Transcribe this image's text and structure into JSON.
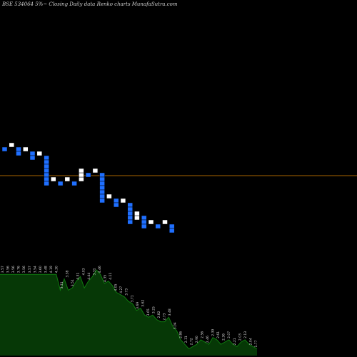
{
  "title": "BSE 534064  5%~ Closing Daily data Renko charts MunafaSutra.com",
  "chart_data": {
    "type": "renko",
    "title": "BSE 534064  5%~ Closing Daily data Renko charts MunafaSutra.com",
    "xlabel": "",
    "ylabel": "",
    "grid": false,
    "legend": "none",
    "colors": {
      "up": "#ffffff",
      "down": "#1f6fff",
      "reference_line": "#a86400",
      "volume_fill": "#063806",
      "volume_edge": "#0f7a0f",
      "label": "#d8d8d8"
    },
    "bricks": [
      {
        "i": 0,
        "dir": "down",
        "row": 0
      },
      {
        "i": 1,
        "dir": "up",
        "row": -1
      },
      {
        "i": 2,
        "dir": "down",
        "row": 0
      },
      {
        "i": 2,
        "dir": "down",
        "row": 1
      },
      {
        "i": 3,
        "dir": "up",
        "row": 0
      },
      {
        "i": 4,
        "dir": "down",
        "row": 1
      },
      {
        "i": 4,
        "dir": "down",
        "row": 2
      },
      {
        "i": 5,
        "dir": "up",
        "row": 1
      },
      {
        "i": 6,
        "dir": "down",
        "row": 2
      },
      {
        "i": 6,
        "dir": "down",
        "row": 3
      },
      {
        "i": 6,
        "dir": "down",
        "row": 4
      },
      {
        "i": 6,
        "dir": "down",
        "row": 5
      },
      {
        "i": 6,
        "dir": "down",
        "row": 6
      },
      {
        "i": 6,
        "dir": "down",
        "row": 7
      },
      {
        "i": 6,
        "dir": "down",
        "row": 8
      },
      {
        "i": 7,
        "dir": "up",
        "row": 7
      },
      {
        "i": 8,
        "dir": "down",
        "row": 8
      },
      {
        "i": 9,
        "dir": "up",
        "row": 7
      },
      {
        "i": 10,
        "dir": "down",
        "row": 8
      },
      {
        "i": 11,
        "dir": "up",
        "row": 7
      },
      {
        "i": 11,
        "dir": "up",
        "row": 6
      },
      {
        "i": 11,
        "dir": "up",
        "row": 5
      },
      {
        "i": 12,
        "dir": "down",
        "row": 6
      },
      {
        "i": 13,
        "dir": "up",
        "row": 5
      },
      {
        "i": 14,
        "dir": "down",
        "row": 6
      },
      {
        "i": 14,
        "dir": "down",
        "row": 7
      },
      {
        "i": 14,
        "dir": "down",
        "row": 8
      },
      {
        "i": 14,
        "dir": "down",
        "row": 9
      },
      {
        "i": 14,
        "dir": "down",
        "row": 10
      },
      {
        "i": 14,
        "dir": "down",
        "row": 11
      },
      {
        "i": 14,
        "dir": "down",
        "row": 12
      },
      {
        "i": 15,
        "dir": "up",
        "row": 11
      },
      {
        "i": 16,
        "dir": "down",
        "row": 12
      },
      {
        "i": 16,
        "dir": "down",
        "row": 13
      },
      {
        "i": 17,
        "dir": "up",
        "row": 12
      },
      {
        "i": 18,
        "dir": "down",
        "row": 13
      },
      {
        "i": 18,
        "dir": "down",
        "row": 14
      },
      {
        "i": 18,
        "dir": "down",
        "row": 15
      },
      {
        "i": 18,
        "dir": "down",
        "row": 16
      },
      {
        "i": 18,
        "dir": "down",
        "row": 17
      },
      {
        "i": 19,
        "dir": "up",
        "row": 16
      },
      {
        "i": 19,
        "dir": "up",
        "row": 15
      },
      {
        "i": 20,
        "dir": "down",
        "row": 16
      },
      {
        "i": 20,
        "dir": "down",
        "row": 17
      },
      {
        "i": 20,
        "dir": "down",
        "row": 18
      },
      {
        "i": 21,
        "dir": "up",
        "row": 17
      },
      {
        "i": 22,
        "dir": "down",
        "row": 18
      },
      {
        "i": 23,
        "dir": "up",
        "row": 17
      },
      {
        "i": 24,
        "dir": "down",
        "row": 18
      },
      {
        "i": 24,
        "dir": "down",
        "row": 19
      }
    ],
    "reference_line": true,
    "volume_labels": [
      "3.57",
      "3.56",
      "3.56",
      "3.76",
      "3.56",
      "3.57",
      "3.54",
      "3.60",
      "3.48",
      "4.19",
      "4.30",
      "3.31",
      "3.38",
      "3.51",
      "4.31",
      "4.03",
      "4.44",
      "3.31",
      "4.46",
      "4.35",
      "4.11",
      "4.05",
      "4.27",
      "3.73",
      "3.71",
      "3.69",
      "3.62",
      "3.65",
      "3.25",
      "2.82",
      "2.73",
      "3.48",
      "3.04",
      "2.86",
      "2.31",
      "2.72",
      "2.90",
      "2.56",
      "2.46",
      "2.39",
      "2.61",
      "2.36",
      "2.07",
      "2.21",
      "2.03",
      "2.13",
      "2.04",
      "1.77"
    ],
    "volume_heights": [
      0.72,
      0.72,
      0.72,
      0.72,
      0.72,
      0.72,
      0.72,
      0.72,
      0.72,
      0.72,
      0.72,
      0.72,
      0.72,
      0.72,
      0.72,
      0.58,
      0.68,
      0.58,
      0.6,
      0.66,
      0.7,
      0.6,
      0.66,
      0.7,
      0.76,
      0.72,
      0.64,
      0.66,
      0.62,
      0.56,
      0.54,
      0.52,
      0.48,
      0.46,
      0.4,
      0.42,
      0.36,
      0.34,
      0.36,
      0.32,
      0.3,
      0.3,
      0.34,
      0.26,
      0.22,
      0.14,
      0.1,
      0.06,
      0.08,
      0.1,
      0.14,
      0.12,
      0.1,
      0.16,
      0.14,
      0.1,
      0.12,
      0.14,
      0.1,
      0.08,
      0.12,
      0.14,
      0.1,
      0.08,
      0.06
    ]
  }
}
